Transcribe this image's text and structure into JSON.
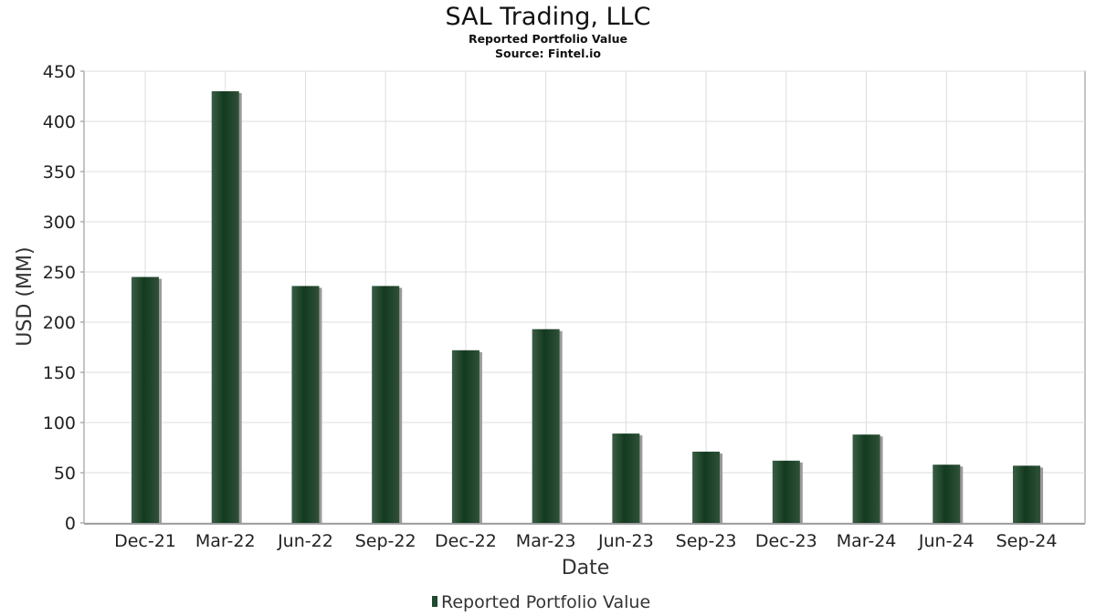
{
  "chart_data": {
    "type": "bar",
    "title": "SAL Trading, LLC",
    "subtitle_1": "Reported Portfolio Value",
    "subtitle_2": "Source: Fintel.io",
    "xlabel": "Date",
    "ylabel": "USD (MM)",
    "ylim": [
      0,
      450
    ],
    "yticks": [
      0,
      50,
      100,
      150,
      200,
      250,
      300,
      350,
      400,
      450
    ],
    "categories": [
      "Dec-21",
      "Mar-22",
      "Jun-22",
      "Sep-22",
      "Dec-22",
      "Mar-23",
      "Jun-23",
      "Sep-23",
      "Dec-23",
      "Mar-24",
      "Jun-24",
      "Sep-24"
    ],
    "series": [
      {
        "name": "Reported Portfolio Value",
        "values": [
          245,
          430,
          236,
          236,
          172,
          193,
          89,
          71,
          62,
          88,
          58,
          57
        ]
      }
    ],
    "grid": true,
    "legend_position": "bottom",
    "colors": {
      "bar": "#1f4a2c",
      "bar_dark": "#133a20",
      "bar_shadow": "#9a9a9a",
      "grid": "#dddddd",
      "axis": "#888888"
    }
  }
}
